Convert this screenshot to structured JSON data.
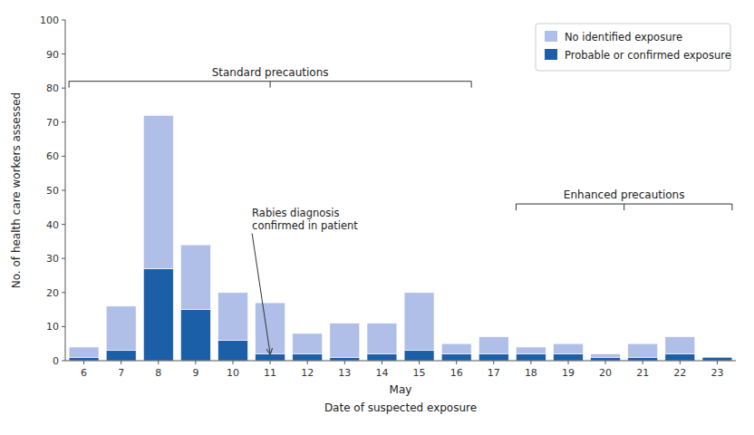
{
  "chart_data": {
    "type": "bar",
    "stacked": true,
    "x": [
      6,
      7,
      8,
      9,
      10,
      11,
      12,
      13,
      14,
      15,
      16,
      17,
      18,
      19,
      20,
      21,
      22,
      23
    ],
    "series": [
      {
        "name": "Probable or confirmed exposure",
        "color": "#1a5fa8",
        "values": [
          1,
          3,
          27,
          15,
          6,
          2,
          2,
          1,
          2,
          3,
          2,
          2,
          2,
          2,
          1,
          1,
          2,
          1
        ]
      },
      {
        "name": "No identified exposure",
        "color": "#b0bfe8",
        "values": [
          3,
          13,
          45,
          19,
          14,
          15,
          6,
          10,
          9,
          17,
          3,
          5,
          2,
          3,
          1,
          4,
          5,
          0
        ]
      }
    ],
    "ylabel": "No. of health care workers assessed",
    "xlabel": "Date of suspected exposure",
    "xlabel_mid": "May",
    "xlim": [
      5.5,
      23.5
    ],
    "xticks": [
      6,
      7,
      8,
      9,
      10,
      11,
      12,
      13,
      14,
      15,
      16,
      17,
      18,
      19,
      20,
      21,
      22,
      23
    ],
    "ylim": [
      0,
      100
    ],
    "yticks": [
      0,
      10,
      20,
      30,
      40,
      50,
      60,
      70,
      80,
      90,
      100
    ],
    "grid": false,
    "legend": "upper right",
    "annotations": [
      {
        "text": "Rabies diagnosis\nconfirmed in patient",
        "x": 11,
        "y": 2
      }
    ],
    "brackets": [
      {
        "text": "Standard precautions",
        "x_start": 6,
        "x_end": 16,
        "y": 82
      },
      {
        "text": "Enhanced precautions",
        "x_start": 18,
        "x_end": 23,
        "y": 46
      }
    ]
  }
}
